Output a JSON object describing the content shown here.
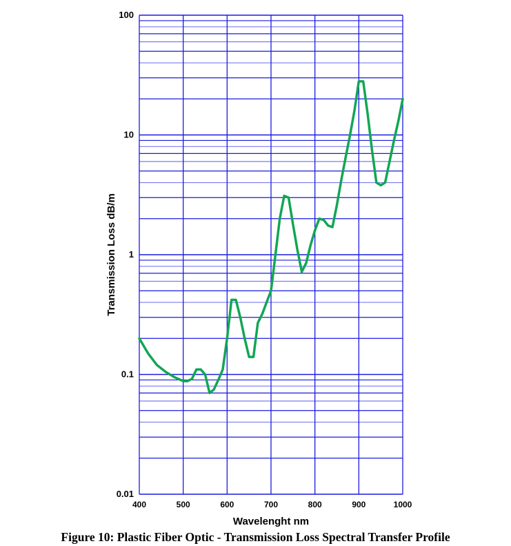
{
  "figure": {
    "caption": "Figure 10: Plastic Fiber Optic - Transmission Loss Spectral Transfer Profile"
  },
  "chart_data": {
    "type": "line",
    "title": "Figure 10: Plastic Fiber Optic - Transmission Loss Spectral Transfer Profile",
    "xlabel": "Wavelenght nm",
    "ylabel": "Transmission Loss dB/m",
    "xlim": [
      400,
      1000
    ],
    "ylim": [
      0.01,
      100
    ],
    "yscale": "log",
    "grid": true,
    "legend": null,
    "x_ticks": [
      "400",
      "500",
      "600",
      "700",
      "800",
      "900",
      "1000"
    ],
    "y_ticks": [
      "0.01",
      "0.1",
      "1",
      "10",
      "100"
    ],
    "colors": {
      "grid": "#1a1adf",
      "grid_minor": "#7b7bf0",
      "line": "#12a654"
    },
    "series": [
      {
        "name": "Transmission Loss",
        "x": [
          400,
          420,
          440,
          460,
          480,
          500,
          510,
          520,
          530,
          540,
          550,
          560,
          570,
          580,
          590,
          600,
          610,
          620,
          630,
          640,
          650,
          660,
          670,
          680,
          690,
          700,
          710,
          720,
          730,
          740,
          750,
          760,
          770,
          780,
          790,
          800,
          810,
          820,
          830,
          840,
          850,
          860,
          870,
          880,
          890,
          900,
          910,
          920,
          930,
          940,
          950,
          960,
          970,
          980,
          990,
          1000
        ],
        "y": [
          0.2,
          0.15,
          0.12,
          0.105,
          0.095,
          0.088,
          0.088,
          0.092,
          0.11,
          0.11,
          0.1,
          0.07,
          0.075,
          0.09,
          0.11,
          0.2,
          0.42,
          0.42,
          0.3,
          0.2,
          0.14,
          0.14,
          0.27,
          0.32,
          0.4,
          0.5,
          1.0,
          2.0,
          3.1,
          3.0,
          1.8,
          1.1,
          0.72,
          0.85,
          1.2,
          1.6,
          2.0,
          1.95,
          1.75,
          1.7,
          2.6,
          4.2,
          6.5,
          10,
          16,
          28,
          28,
          15,
          7.5,
          4.0,
          3.8,
          4.0,
          6.0,
          9.0,
          13,
          20
        ]
      }
    ]
  }
}
